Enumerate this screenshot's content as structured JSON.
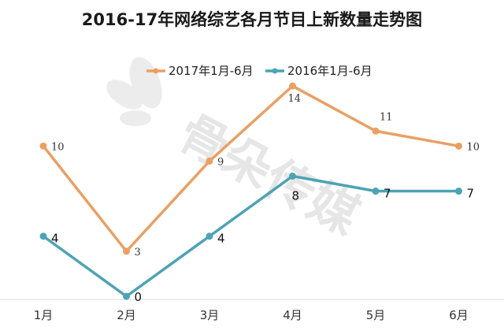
{
  "chart_data": {
    "type": "line",
    "title": "2016-17年网络综艺各月节目上新数量走势图",
    "categories": [
      "1月",
      "2月",
      "3月",
      "4月",
      "5月",
      "6月"
    ],
    "series": [
      {
        "name": "2017年1月-6月",
        "color": "#e9a063",
        "values": [
          10,
          3,
          9,
          14,
          11,
          10
        ]
      },
      {
        "name": "2016年1月-6月",
        "color": "#4da3b3",
        "values": [
          4,
          0,
          4,
          8,
          7,
          7
        ]
      }
    ],
    "ylim": [
      0,
      15
    ],
    "grid": false,
    "legend": "top-center"
  },
  "watermark": {
    "text": "骨朵传媒"
  }
}
